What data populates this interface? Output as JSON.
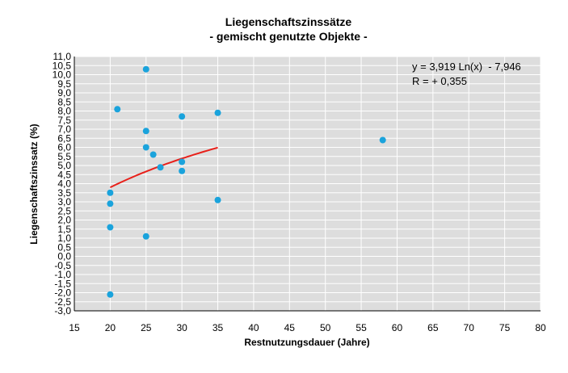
{
  "chart_data": {
    "type": "scatter",
    "title": "Liegenschaftszinssätze",
    "subtitle": "- gemischt genutzte Objekte -",
    "xlabel": "Restnutzungsdauer (Jahre)",
    "ylabel": "Liegenschaftszinssatz (%)",
    "xlim": [
      15,
      80
    ],
    "ylim": [
      -3.0,
      11.0
    ],
    "x_ticks": [
      "15",
      "20",
      "25",
      "30",
      "35",
      "40",
      "45",
      "50",
      "55",
      "60",
      "65",
      "70",
      "75",
      "80"
    ],
    "y_ticks": [
      "11,0",
      "10,5",
      "10,0",
      "9,5",
      "9,0",
      "8,5",
      "8,0",
      "7,5",
      "7,0",
      "6,5",
      "6,0",
      "5,5",
      "5,0",
      "4,5",
      "4,0",
      "3,5",
      "3,0",
      "2,5",
      "2,0",
      "1,5",
      "1,0",
      "0,5",
      "0,0",
      "-0,5",
      "-1,0",
      "-1,5",
      "-2,0",
      "-2,5",
      "-3,0"
    ],
    "grid": true,
    "series": [
      {
        "points": [
          {
            "x": 20,
            "y": 3.5
          },
          {
            "x": 20,
            "y": 2.9
          },
          {
            "x": 20,
            "y": 1.6
          },
          {
            "x": 20,
            "y": -2.1
          },
          {
            "x": 21,
            "y": 8.1
          },
          {
            "x": 25,
            "y": 10.3
          },
          {
            "x": 25,
            "y": 6.9
          },
          {
            "x": 25,
            "y": 6.0
          },
          {
            "x": 25,
            "y": 1.1
          },
          {
            "x": 26,
            "y": 5.6
          },
          {
            "x": 27,
            "y": 4.9
          },
          {
            "x": 30,
            "y": 7.7
          },
          {
            "x": 30,
            "y": 5.2
          },
          {
            "x": 30,
            "y": 4.7
          },
          {
            "x": 35,
            "y": 7.9
          },
          {
            "x": 35,
            "y": 3.1
          },
          {
            "x": 58,
            "y": 6.4
          }
        ]
      }
    ],
    "trendline": {
      "type": "logarithmic",
      "a": 3.919,
      "b": -7.946,
      "x_range": [
        20,
        35
      ]
    },
    "annotations": [
      "y = 3,919 Ln(x)  - 7,946",
      "R = + 0,355"
    ],
    "colors": {
      "plot_bg": "#dddddd",
      "grid": "#ffffff",
      "points": "#1aa3dc",
      "trendline": "#e8201a"
    }
  }
}
